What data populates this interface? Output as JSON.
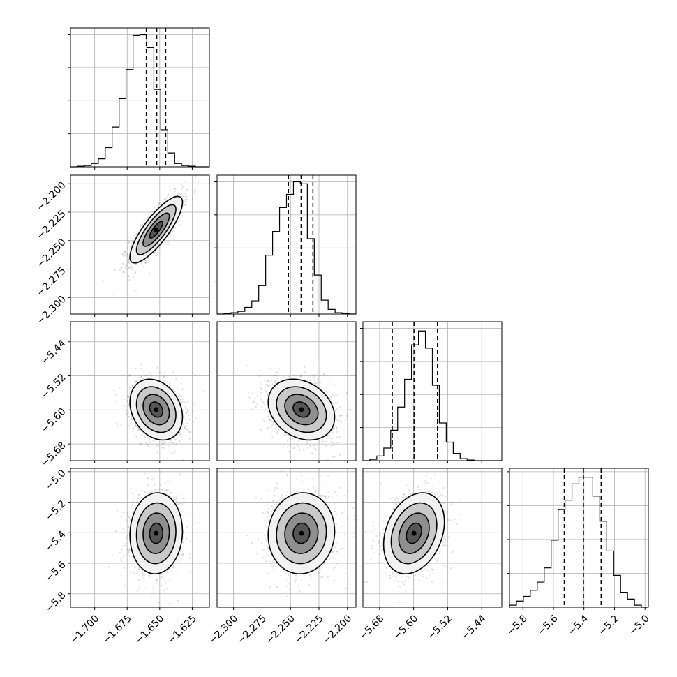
{
  "chart_data": {
    "type": "corner",
    "parameters": [
      {
        "index": 0,
        "range": [
          -1.7186,
          -1.6118
        ],
        "ticks": [
          -1.7,
          -1.675,
          -1.65,
          -1.625
        ],
        "tick_labels": [
          "−1.700",
          "−1.675",
          "−1.650",
          "−1.625"
        ],
        "quantiles": [
          -1.6603,
          -1.6523,
          -1.6454
        ]
      },
      {
        "index": 1,
        "range": [
          -2.3145,
          -2.1925
        ],
        "ticks": [
          -2.3,
          -2.275,
          -2.25,
          -2.225,
          -2.2
        ],
        "tick_labels": [
          "−2.300",
          "−2.275",
          "−2.250",
          "−2.225",
          "−2.200"
        ],
        "quantiles": [
          -2.2518,
          -2.2407,
          -2.2303
        ]
      },
      {
        "index": 2,
        "range": [
          -5.7192,
          -5.3928
        ],
        "ticks": [
          -5.68,
          -5.6,
          -5.52,
          -5.44
        ],
        "tick_labels": [
          "−5.68",
          "−5.60",
          "−5.52",
          "−5.44"
        ],
        "quantiles": [
          -5.6502,
          -5.5992,
          -5.5441
        ]
      },
      {
        "index": 3,
        "range": [
          -5.888,
          -4.978
        ],
        "ticks": [
          -5.8,
          -5.6,
          -5.4,
          -5.2,
          -5.0
        ],
        "tick_labels": [
          "−5.8",
          "−5.6",
          "−5.4",
          "−5.2",
          "−5.0"
        ],
        "quantiles": [
          -5.5291,
          -5.4037,
          -5.2876
        ]
      }
    ],
    "histograms": [
      {
        "param": 0,
        "bin_edges": [
          -1.7186,
          -1.7133,
          -1.7079,
          -1.7026,
          -1.6972,
          -1.6919,
          -1.6866,
          -1.6812,
          -1.6759,
          -1.6705,
          -1.6652,
          -1.6599,
          -1.6545,
          -1.6492,
          -1.6438,
          -1.6385,
          -1.6332,
          -1.6278,
          -1.6225,
          -1.6171,
          -1.6118
        ],
        "counts": [
          0,
          1,
          2,
          5,
          12,
          29,
          60,
          103,
          147,
          199,
          200,
          180,
          117,
          56,
          21,
          5,
          2,
          1,
          0,
          0
        ],
        "ymax": 210
      },
      {
        "param": 1,
        "bin_edges": [
          -2.3145,
          -2.3084,
          -2.3023,
          -2.2962,
          -2.2901,
          -2.284,
          -2.2779,
          -2.2718,
          -2.2657,
          -2.2596,
          -2.2535,
          -2.2474,
          -2.2413,
          -2.2352,
          -2.2291,
          -2.223,
          -2.2169,
          -2.2108,
          -2.2047,
          -2.1986,
          -2.1925
        ],
        "counts": [
          0,
          1,
          2,
          4,
          10,
          20,
          43,
          89,
          125,
          161,
          181,
          200,
          197,
          114,
          59,
          21,
          7,
          2,
          1,
          0
        ],
        "ymax": 210
      },
      {
        "param": 2,
        "bin_edges": [
          -5.7192,
          -5.7029,
          -5.6866,
          -5.6702,
          -5.6539,
          -5.6376,
          -5.6213,
          -5.605,
          -5.5886,
          -5.5723,
          -5.556,
          -5.5397,
          -5.5234,
          -5.507,
          -5.4907,
          -5.4744,
          -5.4581,
          -5.4418,
          -5.4254,
          -5.4091,
          -5.3928
        ],
        "counts": [
          0,
          2,
          7,
          19,
          46,
          81,
          123,
          175,
          196,
          170,
          114,
          57,
          28,
          11,
          3,
          1,
          0,
          0,
          0,
          0
        ],
        "ymax": 210
      },
      {
        "param": 3,
        "bin_edges": [
          -5.888,
          -5.8425,
          -5.797,
          -5.7515,
          -5.706,
          -5.6605,
          -5.615,
          -5.5695,
          -5.524,
          -5.4785,
          -5.433,
          -5.3875,
          -5.342,
          -5.2965,
          -5.251,
          -5.2055,
          -5.16,
          -5.1145,
          -5.069,
          -5.0235,
          -4.978
        ],
        "counts": [
          3,
          9,
          16,
          25,
          37,
          58,
          99,
          144,
          158,
          182,
          192,
          192,
          164,
          127,
          83,
          47,
          22,
          12,
          3,
          0
        ],
        "ymax": 205
      }
    ],
    "scatter_panels": [
      {
        "x_param": 0,
        "y_param": 1,
        "mean": [
          -1.6527,
          -2.2404
        ],
        "sd": [
          0.0101,
          0.0146
        ],
        "rho": 0.82,
        "contour_levels": 4
      },
      {
        "x_param": 0,
        "y_param": 2,
        "mean": [
          -1.6527,
          -5.5992
        ],
        "sd": [
          0.0101,
          0.0357
        ],
        "rho": -0.25,
        "contour_levels": 4
      },
      {
        "x_param": 0,
        "y_param": 3,
        "mean": [
          -1.6527,
          -5.4037
        ],
        "sd": [
          0.0101,
          0.1327
        ],
        "rho": 0.05,
        "contour_levels": 4
      },
      {
        "x_param": 1,
        "y_param": 2,
        "mean": [
          -2.2404,
          -5.5992
        ],
        "sd": [
          0.0146,
          0.0357
        ],
        "rho": -0.25,
        "contour_levels": 4
      },
      {
        "x_param": 1,
        "y_param": 3,
        "mean": [
          -2.2404,
          -5.4037
        ],
        "sd": [
          0.0146,
          0.1327
        ],
        "rho": 0.05,
        "contour_levels": 4
      },
      {
        "x_param": 2,
        "y_param": 3,
        "mean": [
          -5.5992,
          -5.4037
        ],
        "sd": [
          0.0357,
          0.1327
        ],
        "rho": 0.28,
        "contour_levels": 4
      }
    ],
    "grid": true,
    "quantile_lines": "dashed"
  }
}
